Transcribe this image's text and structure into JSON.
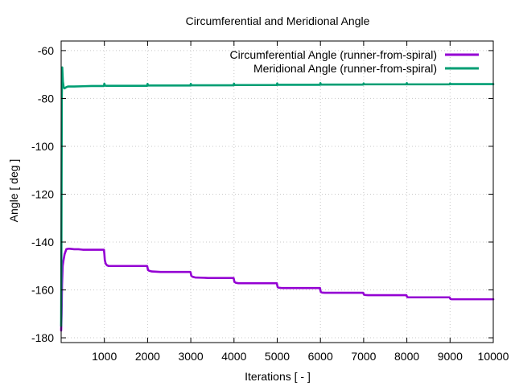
{
  "chart_data": {
    "type": "line",
    "title": "Circumferential and Meridional Angle",
    "xlabel": "Iterations [ - ]",
    "ylabel": "Angle [ deg ]",
    "xlim": [
      0,
      10000
    ],
    "ylim": [
      -182,
      -56
    ],
    "grid": true,
    "legend_position": "top-right",
    "x_ticks": [
      1000,
      2000,
      3000,
      4000,
      5000,
      6000,
      7000,
      8000,
      9000,
      10000
    ],
    "x_tick_labels": [
      "1000",
      "2000",
      "3000",
      "4000",
      "5000",
      "6000",
      "7000",
      "8000",
      "9000",
      "10000"
    ],
    "y_ticks": [
      -60,
      -80,
      -100,
      -120,
      -140,
      -160,
      -180
    ],
    "y_tick_labels": [
      "-60",
      "-80",
      "-100",
      "-120",
      "-140",
      "-160",
      "-180"
    ],
    "series": [
      {
        "name": "Circumferential Angle (runner-from-spiral)",
        "color": "#9400d3",
        "x": [
          0,
          10,
          20,
          35,
          50,
          80,
          120,
          160,
          200,
          300,
          400,
          500,
          600,
          700,
          800,
          900,
          990,
          1000,
          1010,
          1030,
          1060,
          1100,
          1200,
          1500,
          1800,
          1990,
          2000,
          2010,
          2040,
          2100,
          2300,
          2600,
          2990,
          3000,
          3010,
          3040,
          3100,
          3400,
          3700,
          3990,
          4000,
          4010,
          4040,
          4100,
          4400,
          4700,
          4990,
          5000,
          5010,
          5040,
          5100,
          5400,
          5700,
          5990,
          6000,
          6010,
          6040,
          6100,
          6500,
          6990,
          7000,
          7010,
          7040,
          7100,
          7500,
          7990,
          8000,
          8010,
          8040,
          8100,
          8500,
          8990,
          9000,
          9010,
          9040,
          9100,
          9500,
          10000
        ],
        "y": [
          -177,
          -170,
          -158,
          -150,
          -148,
          -145,
          -143,
          -142.8,
          -142.8,
          -143,
          -143,
          -143.2,
          -143.2,
          -143.2,
          -143.2,
          -143.2,
          -143.2,
          -145,
          -147.5,
          -149,
          -149.7,
          -150,
          -150,
          -150,
          -150,
          -150,
          -150.8,
          -151.7,
          -152,
          -152.3,
          -152.5,
          -152.5,
          -152.5,
          -153,
          -154,
          -154.5,
          -154.8,
          -155,
          -155,
          -155,
          -155.8,
          -156.6,
          -157,
          -157.2,
          -157.2,
          -157.2,
          -157.2,
          -158,
          -158.8,
          -159.1,
          -159.2,
          -159.2,
          -159.2,
          -159.2,
          -160.2,
          -160.9,
          -161.1,
          -161.2,
          -161.2,
          -161.2,
          -161.7,
          -162,
          -162.1,
          -162.2,
          -162.2,
          -162.2,
          -162.7,
          -163,
          -163.1,
          -163.1,
          -163.1,
          -163.1,
          -163.5,
          -163.8,
          -163.9,
          -163.9,
          -163.9,
          -163.9
        ]
      },
      {
        "name": "Meridional Angle (runner-from-spiral)",
        "color": "#009e73",
        "x": [
          0,
          5,
          15,
          25,
          40,
          60,
          80,
          100,
          130,
          160,
          200,
          300,
          500,
          700,
          990,
          1000,
          1010,
          1030,
          1500,
          1990,
          2000,
          2010,
          2500,
          2990,
          3000,
          3010,
          3500,
          3990,
          4000,
          4010,
          4500,
          4990,
          5000,
          5010,
          5500,
          5990,
          6000,
          6010,
          6500,
          6990,
          7000,
          7010,
          7500,
          7990,
          8000,
          8010,
          8500,
          8990,
          9000,
          9010,
          10000
        ],
        "y": [
          -175,
          -150,
          -80,
          -67,
          -73,
          -75.5,
          -75.8,
          -75.5,
          -75.2,
          -75,
          -75,
          -75,
          -74.9,
          -74.8,
          -74.8,
          -73.8,
          -74.5,
          -74.7,
          -74.7,
          -74.7,
          -73.9,
          -74.6,
          -74.6,
          -74.6,
          -73.9,
          -74.5,
          -74.5,
          -74.5,
          -73.8,
          -74.4,
          -74.4,
          -74.4,
          -73.7,
          -74.3,
          -74.3,
          -74.3,
          -73.6,
          -74.2,
          -74.2,
          -74.2,
          -73.7,
          -74.1,
          -74.1,
          -74.1,
          -73.6,
          -74.1,
          -74.1,
          -74.1,
          -73.7,
          -74.0,
          -74.0
        ]
      }
    ]
  }
}
